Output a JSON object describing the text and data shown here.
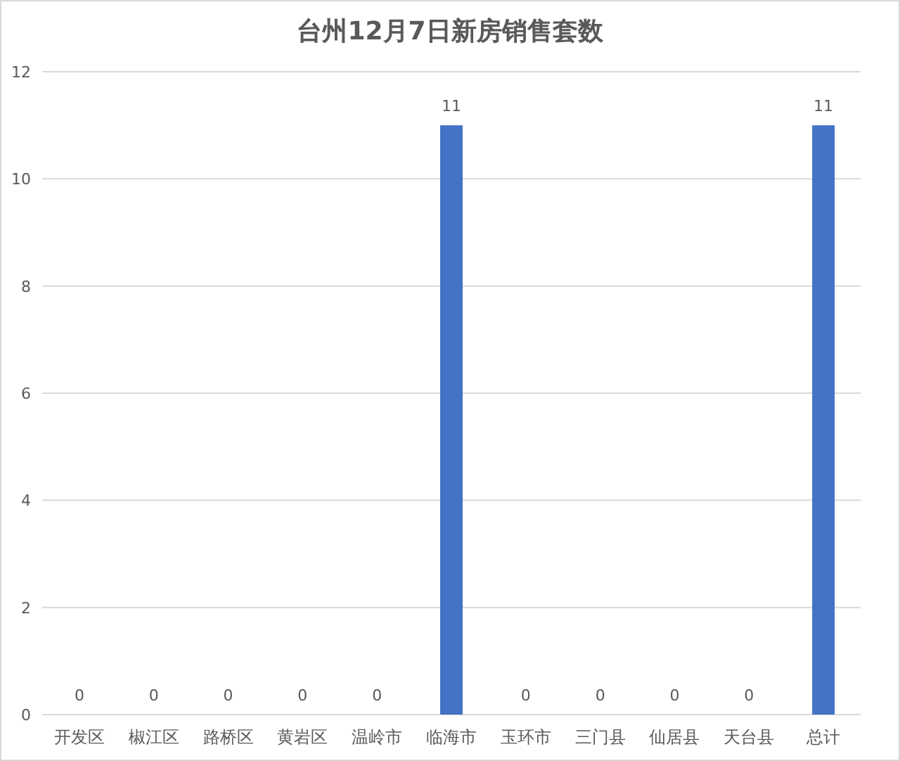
{
  "chart_data": {
    "type": "bar",
    "title": "台州12月7日新房销售套数",
    "categories": [
      "开发区",
      "椒江区",
      "路桥区",
      "黄岩区",
      "温岭市",
      "临海市",
      "玉环市",
      "三门县",
      "仙居县",
      "天台县",
      "总计"
    ],
    "values": [
      0,
      0,
      0,
      0,
      0,
      11,
      0,
      0,
      0,
      0,
      11
    ],
    "color": "#4472c4",
    "ylim": [
      0,
      12
    ],
    "yticks": [
      0,
      2,
      4,
      6,
      8,
      10,
      12
    ],
    "grid": "y",
    "data_labels": true
  }
}
